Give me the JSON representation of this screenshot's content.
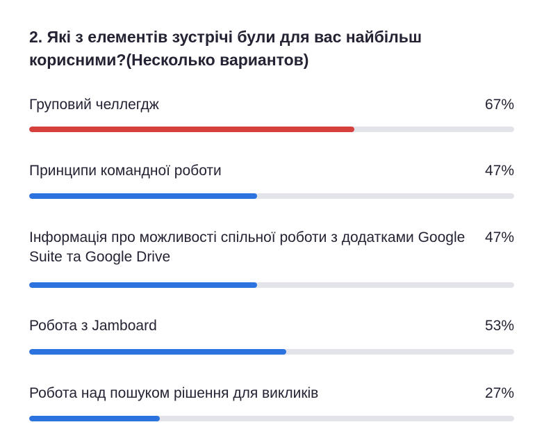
{
  "question": {
    "title": "2. Які з елементів зустрічі були для вас найбільш корисними?(Несколько вариантов)"
  },
  "colors": {
    "highlight": "#d5403d",
    "primary": "#2d73e0",
    "track": "#e3e3ea"
  },
  "chart_data": {
    "type": "bar",
    "categories": [
      "Груповий челлегдж",
      "Принципи командної роботи",
      "Інформація про можливості спільної роботи з додатками Google Suite та Google Drive",
      "Робота з Jamboard",
      "Робота над пошуком рішення для викликів"
    ],
    "values": [
      67,
      47,
      47,
      53,
      27
    ],
    "value_labels": [
      "67%",
      "47%",
      "47%",
      "53%",
      "27%"
    ],
    "unit": "%",
    "xlim": [
      0,
      100
    ],
    "highlighted_index": 0,
    "title": "2. Які з елементів зустрічі були для вас найбільш корисними?(Несколько вариантов)"
  }
}
